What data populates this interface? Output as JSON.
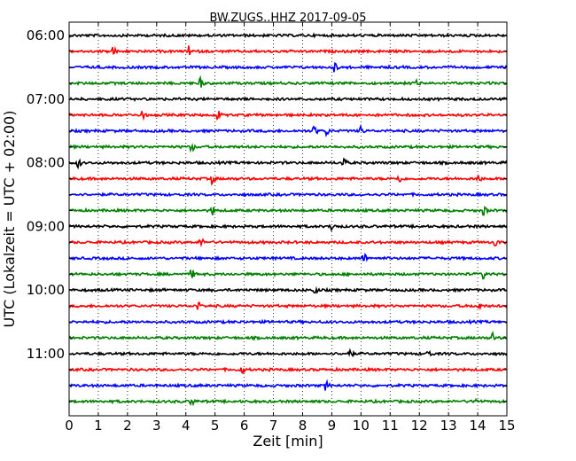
{
  "chart_data": {
    "type": "line",
    "title": "BW.ZUGS..HHZ 2017-09-05",
    "xlabel": "Zeit  [min]",
    "ylabel": "UTC (Lokalzeit = UTC + 02:00)",
    "xlim": [
      0,
      15
    ],
    "x_ticks": [
      "0",
      "1",
      "2",
      "3",
      "4",
      "5",
      "6",
      "7",
      "8",
      "9",
      "10",
      "11",
      "12",
      "13",
      "14",
      "15"
    ],
    "y_tick_labels": [
      "06:00",
      "07:00",
      "08:00",
      "09:00",
      "10:00",
      "11:00"
    ],
    "minutes_per_trace": 15,
    "color_cycle": [
      "#000000",
      "#ff0000",
      "#0000ff",
      "#008000"
    ],
    "grid": "vertical-dotted",
    "traces": [
      {
        "start": "06:00",
        "events": []
      },
      {
        "start": "06:15",
        "events": [
          1.5,
          4.1
        ]
      },
      {
        "start": "06:30",
        "events": [
          9.1
        ]
      },
      {
        "start": "06:45",
        "events": [
          4.5,
          11.9
        ]
      },
      {
        "start": "07:00",
        "events": []
      },
      {
        "start": "07:15",
        "events": [
          2.5,
          5.1
        ]
      },
      {
        "start": "07:30",
        "events": [
          8.4,
          8.8,
          10.0
        ]
      },
      {
        "start": "07:45",
        "events": [
          4.2
        ]
      },
      {
        "start": "08:00",
        "events": [
          0.3,
          9.4
        ]
      },
      {
        "start": "08:15",
        "events": [
          4.9,
          11.3,
          14.0
        ]
      },
      {
        "start": "08:30",
        "events": []
      },
      {
        "start": "08:45",
        "events": [
          4.9,
          14.2
        ]
      },
      {
        "start": "09:00",
        "events": [
          9.0
        ]
      },
      {
        "start": "09:15",
        "events": [
          4.5,
          14.6
        ]
      },
      {
        "start": "09:30",
        "events": [
          10.1
        ]
      },
      {
        "start": "09:45",
        "events": [
          4.2,
          14.2
        ]
      },
      {
        "start": "10:00",
        "events": [
          8.4
        ]
      },
      {
        "start": "10:15",
        "events": [
          4.4,
          14.0
        ]
      },
      {
        "start": "10:30",
        "events": []
      },
      {
        "start": "10:45",
        "events": [
          14.5
        ]
      },
      {
        "start": "11:00",
        "events": [
          9.6,
          12.3
        ]
      },
      {
        "start": "11:15",
        "events": [
          5.9
        ]
      },
      {
        "start": "11:30",
        "events": [
          8.8
        ]
      },
      {
        "start": "11:45",
        "events": [
          4.2,
          13.9
        ]
      }
    ]
  }
}
